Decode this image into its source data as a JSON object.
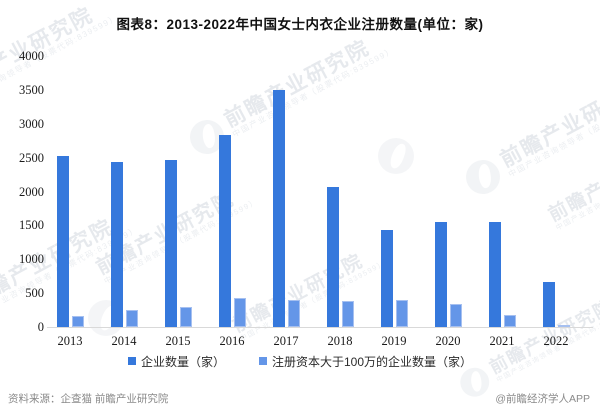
{
  "title": "图表8：2013-2022年中国女士内衣企业注册数量(单位：家)",
  "chart_data": {
    "type": "bar",
    "title": "图表8：2013-2022年中国女士内衣企业注册数量(单位：家)",
    "categories": [
      "2013",
      "2014",
      "2015",
      "2016",
      "2017",
      "2018",
      "2019",
      "2020",
      "2021",
      "2022"
    ],
    "series": [
      {
        "name": "企业数量（家）",
        "color": "#3578dc",
        "values": [
          2530,
          2440,
          2470,
          2830,
          3500,
          2070,
          1430,
          1550,
          1550,
          660
        ]
      },
      {
        "name": "注册资本大于100万的企业数量（家）",
        "color": "#6496e8",
        "values": [
          160,
          250,
          300,
          430,
          400,
          390,
          400,
          340,
          175,
          30
        ]
      }
    ],
    "ylabel": "",
    "xlabel": "",
    "ylim": [
      0,
      4000
    ],
    "yticks": [
      0,
      500,
      1000,
      1500,
      2000,
      2500,
      3000,
      3500,
      4000
    ],
    "grid": false,
    "legend_position": "bottom"
  },
  "footer": {
    "source": "资料来源：企查猫 前瞻产业研究院",
    "credit": "@前瞻经济学人APP"
  },
  "watermark": {
    "text": "前瞻产业研究院",
    "subtext": "中国产业咨询领导者（股票代码:839599）"
  }
}
